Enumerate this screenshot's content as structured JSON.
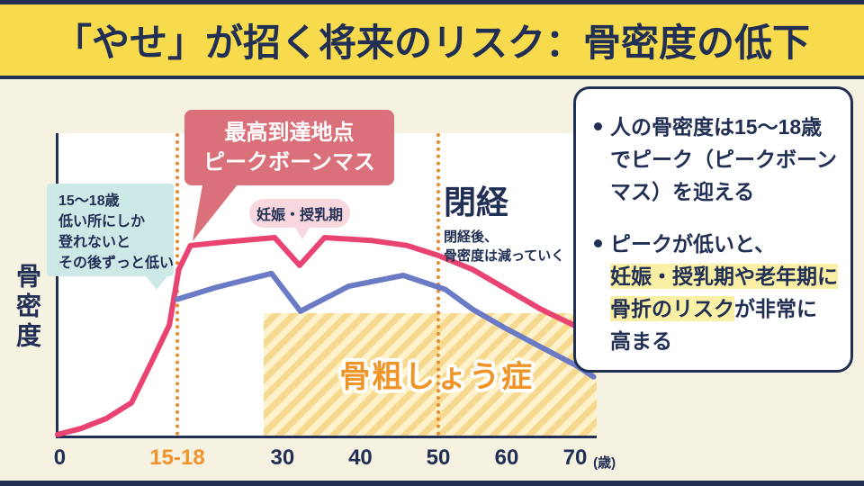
{
  "header": {
    "title": "「やせ」が招く将来のリスク：骨密度の低下"
  },
  "colors": {
    "navy": "#222f55",
    "header_yellow": "#f7db4d",
    "background_cream": "#f6f2e1",
    "pink_line": "#e84371",
    "blue_line": "#6b7ac4",
    "callout_pink": "#d9707a",
    "pill_pink": "#f8d8de",
    "bubble_cyan": "#cde9e7",
    "dotted_orange": "#e8892b",
    "hatch_light": "#fdf2cc",
    "hatch_dark": "#f6d98e",
    "osteoporosis_orange": "#ef9426",
    "tick_accent_orange": "#f0932d",
    "highlight_yellow": "#f9f0a6"
  },
  "chart_data": {
    "type": "line",
    "title": "",
    "ylabel": "骨密度",
    "x_unit": "(歳)",
    "ylim": [
      0,
      105
    ],
    "grid": false,
    "legend": "none",
    "x_ticks": [
      {
        "label": "0",
        "age": 0.3
      },
      {
        "label": "15-18",
        "age": 16.5,
        "accent": true
      },
      {
        "label": "30",
        "age": 30
      },
      {
        "label": "40",
        "age": 40
      },
      {
        "label": "50",
        "age": 50
      },
      {
        "label": "60",
        "age": 60
      },
      {
        "label": "70",
        "age": 70
      },
      {
        "label": "(歳)",
        "age": 74.3,
        "unit": true
      }
    ],
    "series": [
      {
        "name": "series-pink-high-peak",
        "color": "#e84371",
        "points": [
          [
            0,
            1
          ],
          [
            3.2,
            4
          ],
          [
            6.7,
            9
          ],
          [
            10.2,
            17
          ],
          [
            13.3,
            40
          ],
          [
            15.4,
            56
          ],
          [
            16.7,
            84
          ],
          [
            18.2,
            96
          ],
          [
            23.2,
            98
          ],
          [
            29,
            100
          ],
          [
            32.2,
            86
          ],
          [
            35.4,
            100
          ],
          [
            41.5,
            98.5
          ],
          [
            46,
            96
          ],
          [
            50,
            91
          ],
          [
            55,
            84
          ],
          [
            60,
            74
          ],
          [
            65,
            64
          ],
          [
            71,
            54
          ]
        ]
      },
      {
        "name": "series-blue-low-peak",
        "color": "#6b7ac4",
        "points": [
          [
            16.5,
            69
          ],
          [
            21.5,
            75
          ],
          [
            28.6,
            82
          ],
          [
            32.3,
            63
          ],
          [
            38.5,
            75.5
          ],
          [
            45.5,
            81
          ],
          [
            51,
            74
          ],
          [
            55,
            64
          ],
          [
            59.5,
            55
          ],
          [
            65,
            45
          ],
          [
            70,
            36
          ],
          [
            72.7,
            30
          ]
        ]
      }
    ],
    "dotted_guides_ages": [
      16.5,
      50
    ],
    "osteoporosis_region": {
      "label": "骨粗しょう症",
      "age_range": [
        27.6,
        73.2
      ],
      "value_range": [
        0,
        62
      ]
    }
  },
  "annotations": {
    "peak_callout": {
      "line1": "最高到達地点",
      "line2": "ピークボーンマス"
    },
    "pregnancy_pill": "妊娠・授乳期",
    "bubble_lines": [
      "15〜18歳",
      "低い所にしか",
      "登れないと",
      "その後ずっと低い"
    ],
    "menopause": {
      "title": "閉経",
      "sub_lines": [
        "閉経後、",
        "骨密度は減っていく"
      ]
    }
  },
  "panel": {
    "bullet1_segments": [
      {
        "t": "人の骨密度は15〜18歳",
        "hl": false,
        "br": true
      },
      {
        "t": "でピーク（ピークボーン",
        "hl": false,
        "br": true
      },
      {
        "t": "マス）を迎える",
        "hl": false,
        "br": false
      }
    ],
    "bullet2_segments": [
      {
        "t": "ピークが低いと、",
        "hl": false,
        "br": true
      },
      {
        "t": "妊娠・授乳期や老年期に",
        "hl": true,
        "br": true
      },
      {
        "t": "骨折のリスク",
        "hl": true,
        "br": false
      },
      {
        "t": "が非常に",
        "hl": false,
        "br": true
      },
      {
        "t": "高まる",
        "hl": false,
        "br": false
      }
    ]
  }
}
